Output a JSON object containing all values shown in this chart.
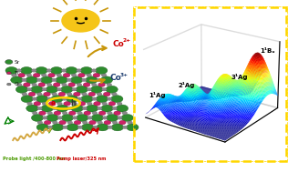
{
  "background_color": "#ffffff",
  "sun_color": "#F5C518",
  "sun_ray_color": "#c8960a",
  "sr_color": "#2d8c2d",
  "sr_edge": "#1a5a1a",
  "ti_color": "#cc2266",
  "ti_edge": "#881144",
  "o_color": "#888888",
  "o_edge": "#555555",
  "co2_color": "#cc0000",
  "co3_color": "#1a3a6e",
  "arrow_color": "#c8960a",
  "probe_text": "Probe light /400-800 nm",
  "probe_color": "#4a9a00",
  "pump_text": "Pump laser/325 nm",
  "pump_color": "#cc0000",
  "box_color": "#FFD700",
  "peak_labels": [
    "1¹Ag",
    "2¹Ag",
    "3¹Ag",
    "1¹Bᵤ"
  ]
}
